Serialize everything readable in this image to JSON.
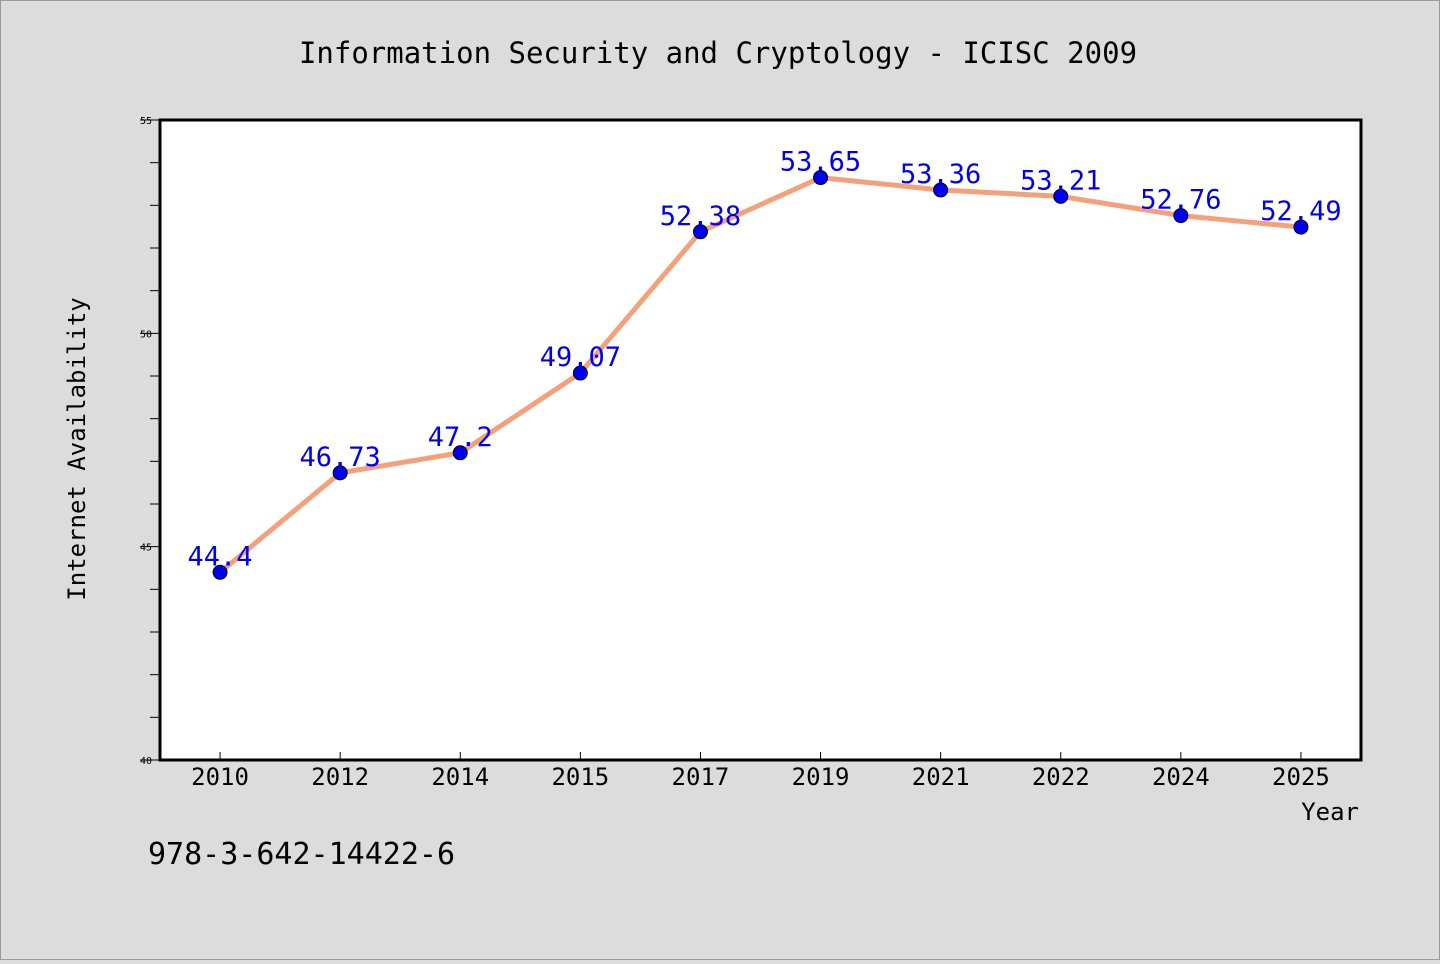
{
  "chart_data": {
    "type": "line",
    "title": "Information Security and Cryptology - ICISC 2009",
    "xlabel": "Year",
    "ylabel": "Internet Availability",
    "categories": [
      "2010",
      "2012",
      "2014",
      "2015",
      "2017",
      "2019",
      "2021",
      "2022",
      "2024",
      "2025"
    ],
    "series": [
      {
        "values": [
          44.4,
          46.73,
          47.2,
          49.07,
          52.38,
          53.65,
          53.36,
          53.21,
          52.76,
          52.49
        ],
        "labels": [
          "44.4",
          "46.73",
          "47.2",
          "49.07",
          "52.38",
          "53.65",
          "53.36",
          "53.21",
          "52.76",
          "52.49"
        ],
        "line_color": "#f4a07a",
        "marker_color": "#0000ee"
      }
    ],
    "ylim": [
      40,
      55
    ],
    "yticks": [
      "40",
      "45",
      "50",
      "55"
    ],
    "grid": false,
    "label_color": "#0000ee"
  },
  "footer_text": "978-3-642-14422-6"
}
